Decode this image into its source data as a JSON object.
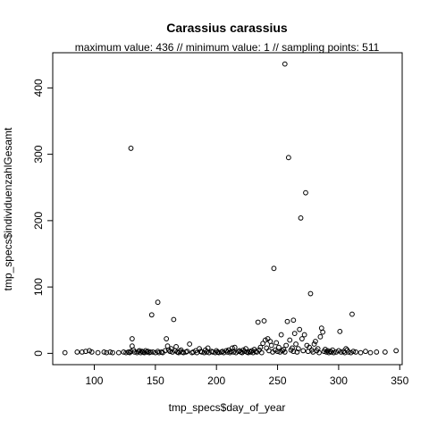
{
  "chart_data": {
    "type": "scatter",
    "title": "Carassius carassius",
    "subtitle": "maximum value: 436  //  minimum value: 1  // sampling points: 511",
    "xlabel": "tmp_specs$day_of_year",
    "ylabel": "tmp_specs$individuenzahlGesamt",
    "xlim": [
      66,
      352
    ],
    "ylim": [
      -17,
      453
    ],
    "x_ticks": [
      100,
      150,
      200,
      250,
      300,
      350
    ],
    "y_ticks": [
      0,
      100,
      200,
      300,
      400
    ],
    "points": [
      [
        76,
        1
      ],
      [
        86,
        2
      ],
      [
        90,
        2
      ],
      [
        93,
        3
      ],
      [
        96,
        4
      ],
      [
        98,
        2
      ],
      [
        103,
        1
      ],
      [
        108,
        2
      ],
      [
        110,
        1
      ],
      [
        113,
        2
      ],
      [
        115,
        1
      ],
      [
        120,
        1
      ],
      [
        124,
        2
      ],
      [
        126,
        1
      ],
      [
        128,
        2
      ],
      [
        129,
        1
      ],
      [
        130,
        3
      ],
      [
        130,
        309
      ],
      [
        131,
        22
      ],
      [
        131,
        11
      ],
      [
        132,
        5
      ],
      [
        133,
        2
      ],
      [
        135,
        1
      ],
      [
        136,
        3
      ],
      [
        137,
        4
      ],
      [
        138,
        1
      ],
      [
        139,
        3
      ],
      [
        140,
        2
      ],
      [
        141,
        1
      ],
      [
        142,
        4
      ],
      [
        143,
        2
      ],
      [
        144,
        3
      ],
      [
        145,
        1
      ],
      [
        146,
        2
      ],
      [
        147,
        58
      ],
      [
        148,
        2
      ],
      [
        150,
        1
      ],
      [
        152,
        77
      ],
      [
        152,
        3
      ],
      [
        153,
        1
      ],
      [
        155,
        2
      ],
      [
        156,
        1
      ],
      [
        158,
        4
      ],
      [
        159,
        22
      ],
      [
        160,
        11
      ],
      [
        161,
        5
      ],
      [
        162,
        3
      ],
      [
        163,
        7
      ],
      [
        164,
        2
      ],
      [
        165,
        51
      ],
      [
        166,
        4
      ],
      [
        167,
        10
      ],
      [
        168,
        2
      ],
      [
        169,
        1
      ],
      [
        170,
        3
      ],
      [
        171,
        5
      ],
      [
        172,
        2
      ],
      [
        173,
        1
      ],
      [
        175,
        2
      ],
      [
        176,
        3
      ],
      [
        178,
        14
      ],
      [
        180,
        1
      ],
      [
        181,
        2
      ],
      [
        183,
        4
      ],
      [
        184,
        1
      ],
      [
        186,
        7
      ],
      [
        187,
        3
      ],
      [
        188,
        2
      ],
      [
        190,
        1
      ],
      [
        191,
        5
      ],
      [
        192,
        2
      ],
      [
        193,
        8
      ],
      [
        194,
        1
      ],
      [
        196,
        3
      ],
      [
        197,
        2
      ],
      [
        199,
        1
      ],
      [
        200,
        4
      ],
      [
        201,
        2
      ],
      [
        202,
        1
      ],
      [
        204,
        2
      ],
      [
        205,
        3
      ],
      [
        206,
        1
      ],
      [
        208,
        4
      ],
      [
        209,
        2
      ],
      [
        210,
        5
      ],
      [
        211,
        1
      ],
      [
        212,
        3
      ],
      [
        213,
        8
      ],
      [
        214,
        2
      ],
      [
        215,
        9
      ],
      [
        216,
        1
      ],
      [
        218,
        3
      ],
      [
        219,
        4
      ],
      [
        220,
        2
      ],
      [
        221,
        1
      ],
      [
        222,
        5
      ],
      [
        223,
        3
      ],
      [
        224,
        7
      ],
      [
        225,
        2
      ],
      [
        226,
        1
      ],
      [
        227,
        3
      ],
      [
        228,
        2
      ],
      [
        229,
        4
      ],
      [
        230,
        1
      ],
      [
        231,
        6
      ],
      [
        232,
        3
      ],
      [
        233,
        2
      ],
      [
        234,
        47
      ],
      [
        235,
        5
      ],
      [
        236,
        9
      ],
      [
        237,
        1
      ],
      [
        238,
        15
      ],
      [
        239,
        49
      ],
      [
        240,
        20
      ],
      [
        241,
        8
      ],
      [
        242,
        22
      ],
      [
        243,
        4
      ],
      [
        244,
        18
      ],
      [
        245,
        12
      ],
      [
        246,
        2
      ],
      [
        247,
        128
      ],
      [
        248,
        5
      ],
      [
        249,
        16
      ],
      [
        250,
        3
      ],
      [
        251,
        9
      ],
      [
        252,
        2
      ],
      [
        253,
        28
      ],
      [
        254,
        4
      ],
      [
        255,
        6
      ],
      [
        256,
        436
      ],
      [
        256,
        2
      ],
      [
        257,
        12
      ],
      [
        258,
        48
      ],
      [
        259,
        295
      ],
      [
        260,
        20
      ],
      [
        261,
        5
      ],
      [
        262,
        8
      ],
      [
        263,
        50
      ],
      [
        263,
        3
      ],
      [
        264,
        30
      ],
      [
        265,
        14
      ],
      [
        266,
        2
      ],
      [
        267,
        7
      ],
      [
        268,
        36
      ],
      [
        269,
        204
      ],
      [
        270,
        22
      ],
      [
        271,
        4
      ],
      [
        272,
        28
      ],
      [
        273,
        242
      ],
      [
        274,
        12
      ],
      [
        275,
        3
      ],
      [
        276,
        9
      ],
      [
        277,
        90
      ],
      [
        278,
        5
      ],
      [
        279,
        2
      ],
      [
        280,
        14
      ],
      [
        281,
        18
      ],
      [
        282,
        4
      ],
      [
        283,
        7
      ],
      [
        284,
        1
      ],
      [
        285,
        25
      ],
      [
        286,
        38
      ],
      [
        287,
        32
      ],
      [
        288,
        3
      ],
      [
        289,
        6
      ],
      [
        290,
        2
      ],
      [
        291,
        4
      ],
      [
        292,
        1
      ],
      [
        293,
        3
      ],
      [
        294,
        2
      ],
      [
        295,
        5
      ],
      [
        296,
        1
      ],
      [
        298,
        2
      ],
      [
        300,
        4
      ],
      [
        301,
        33
      ],
      [
        302,
        2
      ],
      [
        304,
        3
      ],
      [
        305,
        1
      ],
      [
        306,
        7
      ],
      [
        307,
        5
      ],
      [
        308,
        2
      ],
      [
        310,
        1
      ],
      [
        311,
        59
      ],
      [
        312,
        3
      ],
      [
        314,
        2
      ],
      [
        318,
        1
      ],
      [
        322,
        3
      ],
      [
        326,
        1
      ],
      [
        331,
        2
      ],
      [
        338,
        2
      ],
      [
        347,
        4
      ]
    ]
  }
}
